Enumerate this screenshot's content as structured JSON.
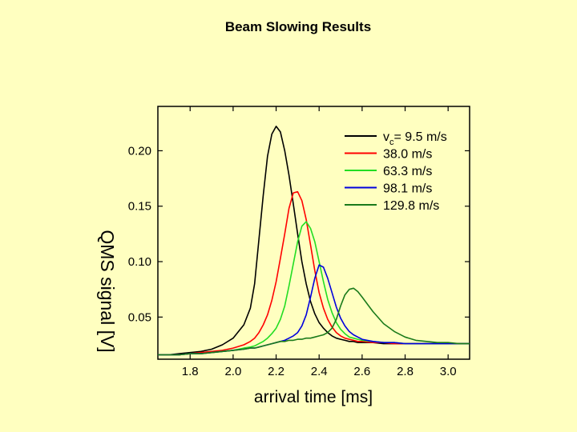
{
  "slide": {
    "title": "Beam Slowing Results"
  },
  "chart_data": {
    "type": "line",
    "title": "Beam Slowing Results",
    "xlabel": "arrival time [ms]",
    "ylabel": "QMS signal [V]",
    "xlim": [
      1.65,
      3.1
    ],
    "ylim": [
      0.012,
      0.24
    ],
    "x_ticks": [
      1.8,
      2.0,
      2.2,
      2.4,
      2.6,
      2.8,
      3.0
    ],
    "x_tick_labels": [
      "1.8",
      "2.0",
      "2.2",
      "2.4",
      "2.6",
      "2.8",
      "3.0"
    ],
    "y_ticks": [
      0.05,
      0.1,
      0.15,
      0.2
    ],
    "y_tick_labels": [
      "0.05",
      "0.10",
      "0.15",
      "0.20"
    ],
    "grid": false,
    "legend_position": "top-right",
    "x": [
      1.65,
      1.7,
      1.75,
      1.8,
      1.85,
      1.9,
      1.95,
      2.0,
      2.05,
      2.08,
      2.1,
      2.12,
      2.14,
      2.16,
      2.18,
      2.2,
      2.22,
      2.24,
      2.26,
      2.28,
      2.3,
      2.32,
      2.34,
      2.36,
      2.38,
      2.4,
      2.42,
      2.44,
      2.46,
      2.48,
      2.5,
      2.52,
      2.54,
      2.56,
      2.58,
      2.6,
      2.65,
      2.7,
      2.75,
      2.8,
      2.85,
      2.9,
      2.95,
      3.0,
      3.05,
      3.1
    ],
    "series": [
      {
        "name": "v_c = 9.5 m/s",
        "label_main": "v",
        "label_sub": "c",
        "label_rest": "= 9.5 m/s",
        "color": "#000000",
        "values": [
          0.016,
          0.016,
          0.017,
          0.018,
          0.019,
          0.021,
          0.025,
          0.031,
          0.043,
          0.058,
          0.08,
          0.12,
          0.16,
          0.195,
          0.215,
          0.222,
          0.217,
          0.2,
          0.178,
          0.152,
          0.125,
          0.1,
          0.08,
          0.064,
          0.053,
          0.045,
          0.04,
          0.036,
          0.033,
          0.031,
          0.03,
          0.029,
          0.028,
          0.028,
          0.027,
          0.027,
          0.027,
          0.026,
          0.026,
          0.026,
          0.026,
          0.026,
          0.026,
          0.026,
          0.026,
          0.026
        ]
      },
      {
        "name": "38.0 m/s",
        "label_main": "38.0 m/s",
        "color": "#FF0000",
        "values": [
          0.016,
          0.016,
          0.016,
          0.017,
          0.018,
          0.019,
          0.02,
          0.022,
          0.025,
          0.028,
          0.031,
          0.036,
          0.043,
          0.052,
          0.065,
          0.082,
          0.103,
          0.125,
          0.148,
          0.162,
          0.163,
          0.155,
          0.138,
          0.115,
          0.092,
          0.072,
          0.058,
          0.048,
          0.041,
          0.036,
          0.033,
          0.031,
          0.03,
          0.029,
          0.028,
          0.028,
          0.027,
          0.027,
          0.026,
          0.026,
          0.026,
          0.026,
          0.026,
          0.026,
          0.026,
          0.026
        ]
      },
      {
        "name": "63.3 m/s",
        "label_main": "63.3 m/s",
        "color": "#22DD22",
        "values": [
          0.016,
          0.016,
          0.016,
          0.017,
          0.017,
          0.018,
          0.019,
          0.02,
          0.022,
          0.023,
          0.024,
          0.026,
          0.028,
          0.031,
          0.035,
          0.04,
          0.048,
          0.06,
          0.078,
          0.098,
          0.118,
          0.132,
          0.136,
          0.13,
          0.118,
          0.1,
          0.082,
          0.066,
          0.054,
          0.045,
          0.039,
          0.035,
          0.032,
          0.031,
          0.03,
          0.029,
          0.028,
          0.027,
          0.027,
          0.026,
          0.026,
          0.026,
          0.026,
          0.026,
          0.026,
          0.026
        ]
      },
      {
        "name": "98.1 m/s",
        "label_main": "98.1 m/s",
        "color": "#0000DD",
        "values": [
          0.016,
          0.016,
          0.016,
          0.017,
          0.017,
          0.018,
          0.019,
          0.02,
          0.021,
          0.022,
          0.022,
          0.023,
          0.024,
          0.025,
          0.026,
          0.027,
          0.028,
          0.029,
          0.031,
          0.033,
          0.036,
          0.042,
          0.052,
          0.068,
          0.085,
          0.097,
          0.095,
          0.085,
          0.072,
          0.059,
          0.049,
          0.042,
          0.037,
          0.034,
          0.032,
          0.03,
          0.028,
          0.027,
          0.027,
          0.026,
          0.026,
          0.026,
          0.026,
          0.026,
          0.026,
          0.026
        ]
      },
      {
        "name": "129.8 m/s",
        "label_main": "129.8 m/s",
        "color": "#1A7A1A",
        "values": [
          0.016,
          0.016,
          0.016,
          0.017,
          0.017,
          0.018,
          0.019,
          0.02,
          0.021,
          0.022,
          0.022,
          0.023,
          0.024,
          0.025,
          0.026,
          0.027,
          0.028,
          0.028,
          0.029,
          0.029,
          0.03,
          0.03,
          0.031,
          0.031,
          0.032,
          0.033,
          0.034,
          0.036,
          0.04,
          0.048,
          0.06,
          0.07,
          0.075,
          0.076,
          0.073,
          0.068,
          0.055,
          0.044,
          0.037,
          0.032,
          0.029,
          0.028,
          0.027,
          0.027,
          0.026,
          0.026
        ]
      }
    ]
  }
}
